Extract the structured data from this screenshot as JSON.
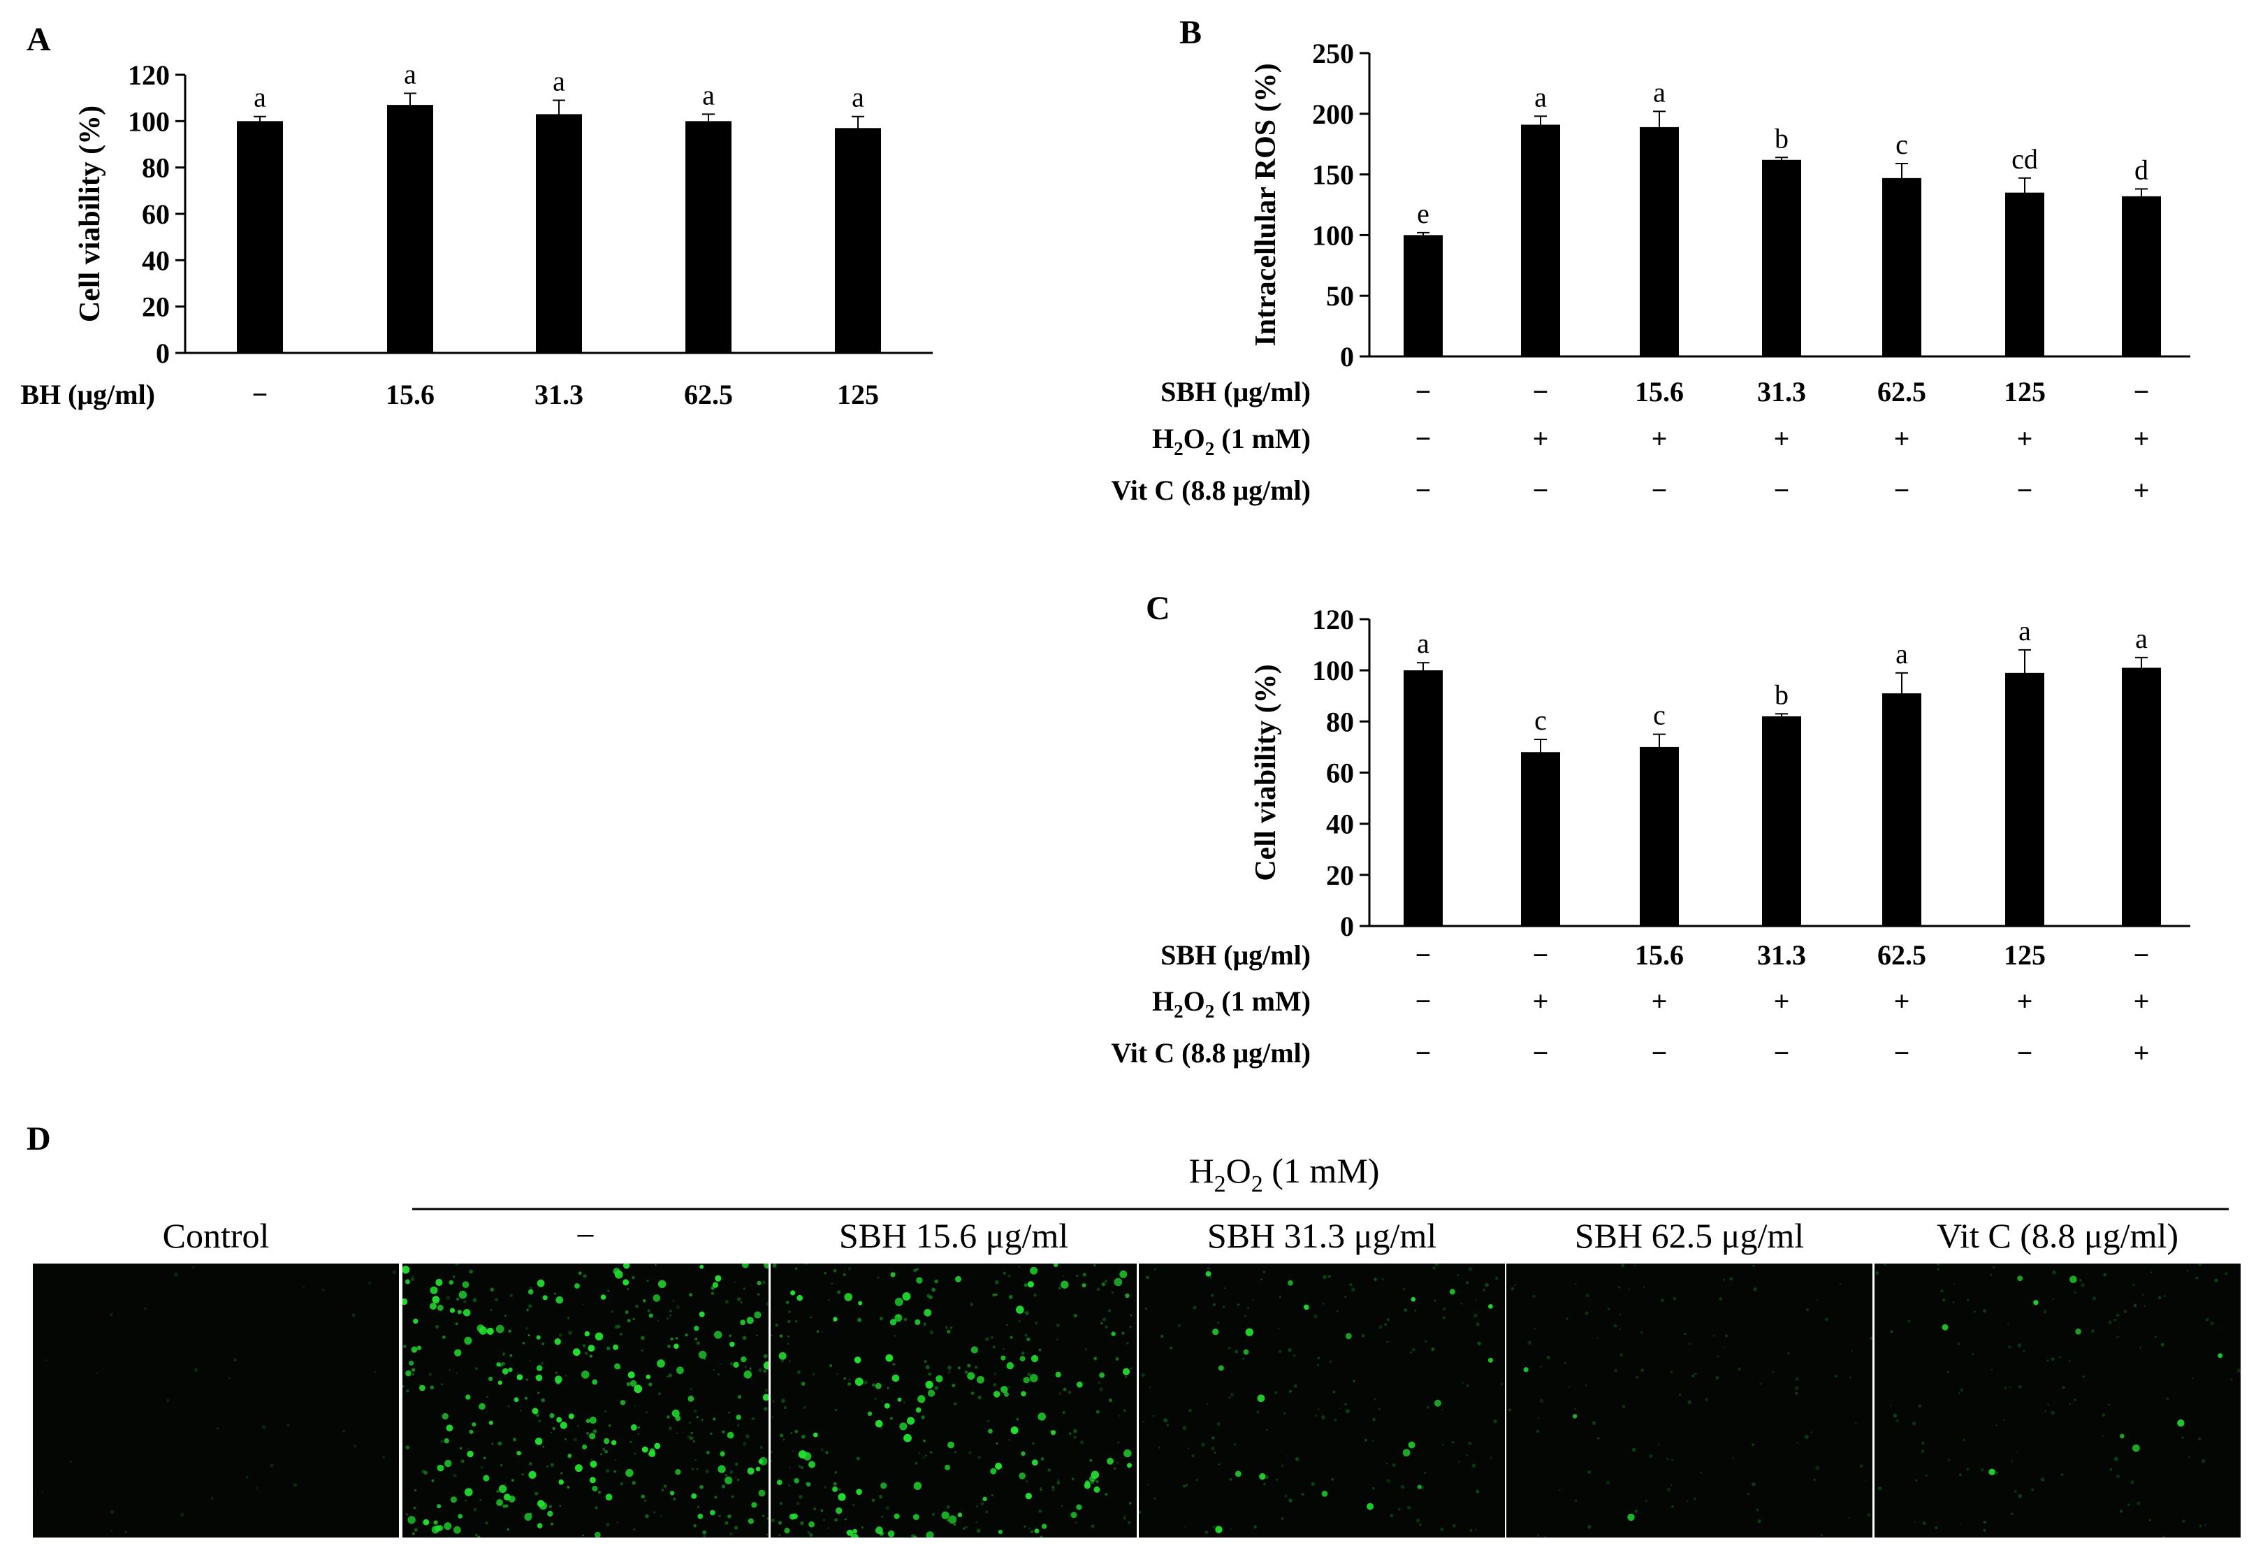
{
  "colors": {
    "bar": "#000000",
    "axis": "#000000",
    "fluorescence": "#22e030",
    "micrograph_bg": "#040604"
  },
  "chart_data": [
    {
      "panel": "A",
      "type": "bar",
      "ylabel": "Cell viability (%)",
      "ylim": [
        0,
        120
      ],
      "yticks": [
        "0",
        "20",
        "40",
        "60",
        "80",
        "100",
        "120"
      ],
      "row_label": "BH (μg/ml)",
      "categories": [
        "−",
        "15.6",
        "31.3",
        "62.5",
        "125"
      ],
      "values": [
        100,
        107,
        103,
        100,
        97
      ],
      "errors": [
        2,
        5,
        6,
        3,
        5
      ],
      "letters": [
        "a",
        "a",
        "a",
        "a",
        "a"
      ]
    },
    {
      "panel": "B",
      "type": "bar",
      "ylabel": "Intracellular ROS (%)",
      "ylim": [
        0,
        250
      ],
      "yticks": [
        "0",
        "50",
        "100",
        "150",
        "200",
        "250"
      ],
      "conditions": [
        {
          "label": "SBH (μg/ml)",
          "values": [
            "−",
            "−",
            "15.6",
            "31.3",
            "62.5",
            "125",
            "−"
          ]
        },
        {
          "label_parts": [
            "H",
            "2",
            "O",
            "2",
            " (1 mM)"
          ],
          "values": [
            "−",
            "+",
            "+",
            "+",
            "+",
            "+",
            "+"
          ]
        },
        {
          "label": "Vit C (8.8 μg/ml)",
          "values": [
            "−",
            "−",
            "−",
            "−",
            "−",
            "−",
            "+"
          ]
        }
      ],
      "values": [
        100,
        191,
        189,
        162,
        147,
        135,
        132
      ],
      "errors": [
        2,
        7,
        13,
        2,
        12,
        12,
        6
      ],
      "letters": [
        "e",
        "a",
        "a",
        "b",
        "c",
        "cd",
        "d"
      ]
    },
    {
      "panel": "C",
      "type": "bar",
      "ylabel": "Cell viability (%)",
      "ylim": [
        0,
        120
      ],
      "yticks": [
        "0",
        "20",
        "40",
        "60",
        "80",
        "100",
        "120"
      ],
      "conditions": [
        {
          "label": "SBH (μg/ml)",
          "values": [
            "−",
            "−",
            "15.6",
            "31.3",
            "62.5",
            "125",
            "−"
          ]
        },
        {
          "label_parts": [
            "H",
            "2",
            "O",
            "2",
            " (1 mM)"
          ],
          "values": [
            "−",
            "+",
            "+",
            "+",
            "+",
            "+",
            "+"
          ]
        },
        {
          "label": "Vit C (8.8 μg/ml)",
          "values": [
            "−",
            "−",
            "−",
            "−",
            "−",
            "−",
            "+"
          ]
        }
      ],
      "values": [
        100,
        68,
        70,
        82,
        91,
        99,
        101
      ],
      "errors": [
        3,
        5,
        5,
        1,
        8,
        9,
        4
      ],
      "letters": [
        "a",
        "c",
        "c",
        "b",
        "a",
        "a",
        "a"
      ]
    }
  ],
  "panel_d": {
    "panel": "D",
    "header_parts": [
      "H",
      "2",
      "O",
      "2",
      " (1 mM)"
    ],
    "columns": [
      "Control",
      "−",
      "SBH 15.6 μg/ml",
      "SBH 31.3 μg/ml",
      "SBH 62.5 μg/ml",
      "Vit C (8.8 μg/ml)"
    ],
    "fluorescence_level": [
      0.03,
      1.0,
      0.85,
      0.4,
      0.22,
      0.28
    ]
  }
}
